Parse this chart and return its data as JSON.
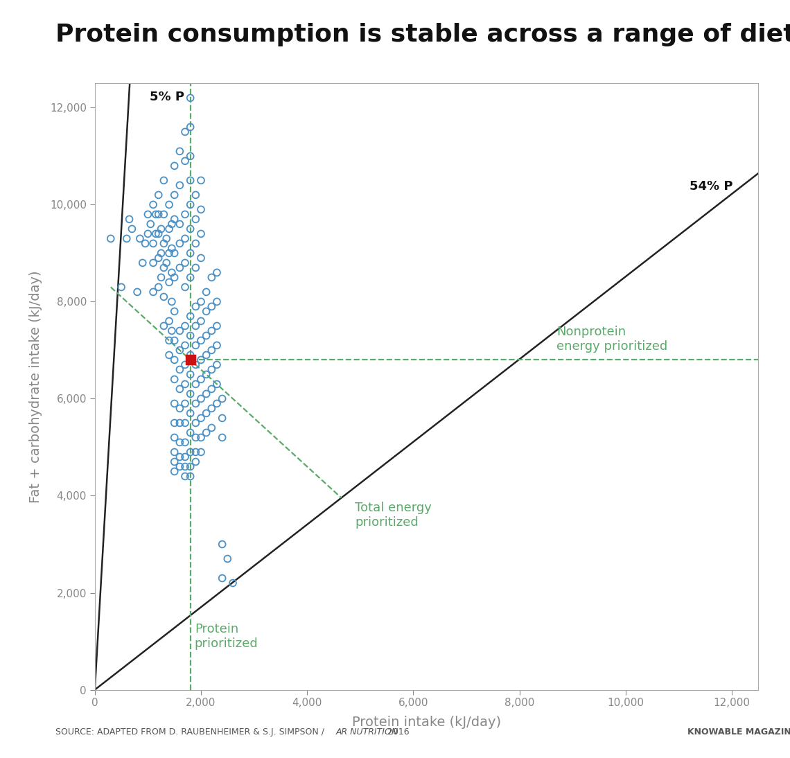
{
  "title": "Protein consumption is stable across a range of diets",
  "xlabel": "Protein intake (kJ/day)",
  "ylabel": "Fat + carbohydrate intake (kJ/day)",
  "xlim": [
    0,
    12500
  ],
  "ylim": [
    0,
    12500
  ],
  "xticks": [
    0,
    2000,
    4000,
    6000,
    8000,
    10000,
    12000
  ],
  "yticks": [
    0,
    2000,
    4000,
    6000,
    8000,
    10000,
    12000
  ],
  "background_color": "#ffffff",
  "scatter_color": "#4a90c4",
  "red_point": [
    1800,
    6800
  ],
  "dashed_vline_x": 1800,
  "dashed_hline_y": 6800,
  "label_5p": "5% P",
  "label_54p": "54% P",
  "label_nonprotein": "Nonprotein\nenergy prioritized",
  "label_total_energy": "Total energy\nprioritized",
  "label_protein": "Protein\nprioritized",
  "source_prefix": "SOURCE: ADAPTED FROM D. RAUBENHEIMER & S.J. SIMPSON / ",
  "source_italic": "AR NUTRITION",
  "source_suffix": " 2016",
  "knowable_text": "KNOWABLE MAGAZINE",
  "dashed_green": "#5aaa6a",
  "diagonal_line_color": "#222222",
  "title_fontsize": 26,
  "axis_label_fontsize": 14,
  "tick_label_fontsize": 11,
  "annotation_fontsize": 13,
  "source_fontsize": 9,
  "scatter_points": [
    [
      300,
      9300
    ],
    [
      500,
      8300
    ],
    [
      600,
      9300
    ],
    [
      650,
      9700
    ],
    [
      700,
      9500
    ],
    [
      800,
      8200
    ],
    [
      850,
      9300
    ],
    [
      900,
      8800
    ],
    [
      950,
      9200
    ],
    [
      1000,
      9800
    ],
    [
      1000,
      9400
    ],
    [
      1050,
      9600
    ],
    [
      1100,
      10000
    ],
    [
      1100,
      9200
    ],
    [
      1100,
      8800
    ],
    [
      1100,
      8200
    ],
    [
      1150,
      9800
    ],
    [
      1150,
      9400
    ],
    [
      1200,
      10200
    ],
    [
      1200,
      9800
    ],
    [
      1200,
      9400
    ],
    [
      1200,
      8900
    ],
    [
      1200,
      8300
    ],
    [
      1250,
      9500
    ],
    [
      1250,
      9000
    ],
    [
      1250,
      8500
    ],
    [
      1300,
      10500
    ],
    [
      1300,
      9800
    ],
    [
      1300,
      9200
    ],
    [
      1300,
      8700
    ],
    [
      1300,
      8100
    ],
    [
      1300,
      7500
    ],
    [
      1350,
      9300
    ],
    [
      1350,
      8800
    ],
    [
      1400,
      10000
    ],
    [
      1400,
      9500
    ],
    [
      1400,
      9000
    ],
    [
      1400,
      8400
    ],
    [
      1400,
      7600
    ],
    [
      1400,
      7200
    ],
    [
      1400,
      6900
    ],
    [
      1450,
      9600
    ],
    [
      1450,
      9100
    ],
    [
      1450,
      8600
    ],
    [
      1450,
      8000
    ],
    [
      1450,
      7400
    ],
    [
      1500,
      10800
    ],
    [
      1500,
      10200
    ],
    [
      1500,
      9700
    ],
    [
      1500,
      9000
    ],
    [
      1500,
      8500
    ],
    [
      1500,
      7800
    ],
    [
      1500,
      7200
    ],
    [
      1500,
      6800
    ],
    [
      1500,
      6400
    ],
    [
      1500,
      5900
    ],
    [
      1500,
      5500
    ],
    [
      1500,
      5200
    ],
    [
      1500,
      4900
    ],
    [
      1500,
      4700
    ],
    [
      1500,
      4500
    ],
    [
      1600,
      11100
    ],
    [
      1600,
      10400
    ],
    [
      1600,
      9600
    ],
    [
      1600,
      9200
    ],
    [
      1600,
      8700
    ],
    [
      1600,
      7400
    ],
    [
      1600,
      7000
    ],
    [
      1600,
      6600
    ],
    [
      1600,
      6200
    ],
    [
      1600,
      5800
    ],
    [
      1600,
      5500
    ],
    [
      1600,
      5100
    ],
    [
      1600,
      4800
    ],
    [
      1600,
      4600
    ],
    [
      1700,
      11500
    ],
    [
      1700,
      10900
    ],
    [
      1700,
      9800
    ],
    [
      1700,
      9300
    ],
    [
      1700,
      8800
    ],
    [
      1700,
      8300
    ],
    [
      1700,
      7500
    ],
    [
      1700,
      7100
    ],
    [
      1700,
      6700
    ],
    [
      1700,
      6300
    ],
    [
      1700,
      5900
    ],
    [
      1700,
      5500
    ],
    [
      1700,
      5100
    ],
    [
      1700,
      4800
    ],
    [
      1700,
      4600
    ],
    [
      1700,
      4400
    ],
    [
      1800,
      12200
    ],
    [
      1800,
      11600
    ],
    [
      1800,
      11000
    ],
    [
      1800,
      10500
    ],
    [
      1800,
      10000
    ],
    [
      1800,
      9500
    ],
    [
      1800,
      9000
    ],
    [
      1800,
      8500
    ],
    [
      1800,
      7700
    ],
    [
      1800,
      7300
    ],
    [
      1800,
      6900
    ],
    [
      1800,
      6500
    ],
    [
      1800,
      6100
    ],
    [
      1800,
      5700
    ],
    [
      1800,
      5300
    ],
    [
      1800,
      4900
    ],
    [
      1800,
      4600
    ],
    [
      1800,
      4400
    ],
    [
      1900,
      10200
    ],
    [
      1900,
      9700
    ],
    [
      1900,
      9200
    ],
    [
      1900,
      8700
    ],
    [
      1900,
      7900
    ],
    [
      1900,
      7500
    ],
    [
      1900,
      7100
    ],
    [
      1900,
      6700
    ],
    [
      1900,
      6300
    ],
    [
      1900,
      5900
    ],
    [
      1900,
      5500
    ],
    [
      1900,
      5200
    ],
    [
      1900,
      4900
    ],
    [
      1900,
      4700
    ],
    [
      2000,
      10500
    ],
    [
      2000,
      9900
    ],
    [
      2000,
      9400
    ],
    [
      2000,
      8900
    ],
    [
      2000,
      8000
    ],
    [
      2000,
      7600
    ],
    [
      2000,
      7200
    ],
    [
      2000,
      6800
    ],
    [
      2000,
      6400
    ],
    [
      2000,
      6000
    ],
    [
      2000,
      5600
    ],
    [
      2000,
      5200
    ],
    [
      2000,
      4900
    ],
    [
      2100,
      8200
    ],
    [
      2100,
      7800
    ],
    [
      2100,
      7300
    ],
    [
      2100,
      6900
    ],
    [
      2100,
      6500
    ],
    [
      2100,
      6100
    ],
    [
      2100,
      5700
    ],
    [
      2100,
      5300
    ],
    [
      2200,
      8500
    ],
    [
      2200,
      7900
    ],
    [
      2200,
      7400
    ],
    [
      2200,
      7000
    ],
    [
      2200,
      6600
    ],
    [
      2200,
      6200
    ],
    [
      2200,
      5800
    ],
    [
      2200,
      5400
    ],
    [
      2300,
      8600
    ],
    [
      2300,
      8000
    ],
    [
      2300,
      7500
    ],
    [
      2300,
      7100
    ],
    [
      2300,
      6700
    ],
    [
      2300,
      6300
    ],
    [
      2300,
      5900
    ],
    [
      2400,
      6000
    ],
    [
      2400,
      5600
    ],
    [
      2400,
      5200
    ],
    [
      2400,
      3000
    ],
    [
      2500,
      2700
    ],
    [
      2600,
      2200
    ],
    [
      2400,
      2300
    ]
  ]
}
